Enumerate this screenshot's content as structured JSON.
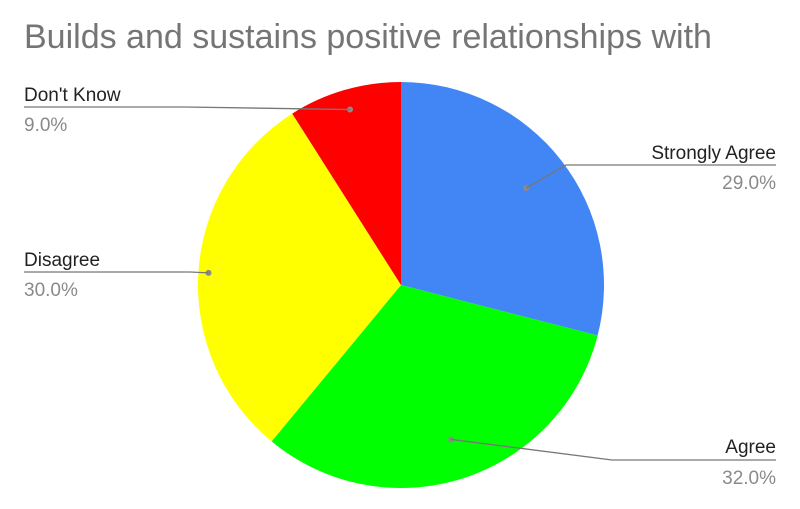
{
  "chart_data": {
    "type": "pie",
    "title": "Builds and sustains positive relationships with",
    "slices": [
      {
        "label": "Strongly Agree",
        "value": 29.0,
        "percent_label": "29.0%",
        "color": "#4285f4"
      },
      {
        "label": "Agree",
        "value": 32.0,
        "percent_label": "32.0%",
        "color": "#00ff00"
      },
      {
        "label": "Disagree",
        "value": 30.0,
        "percent_label": "30.0%",
        "color": "#ffff00"
      },
      {
        "label": "Don't Know",
        "value": 9.0,
        "percent_label": "9.0%",
        "color": "#ff0000"
      }
    ],
    "legend": "labels-with-leader-lines"
  }
}
